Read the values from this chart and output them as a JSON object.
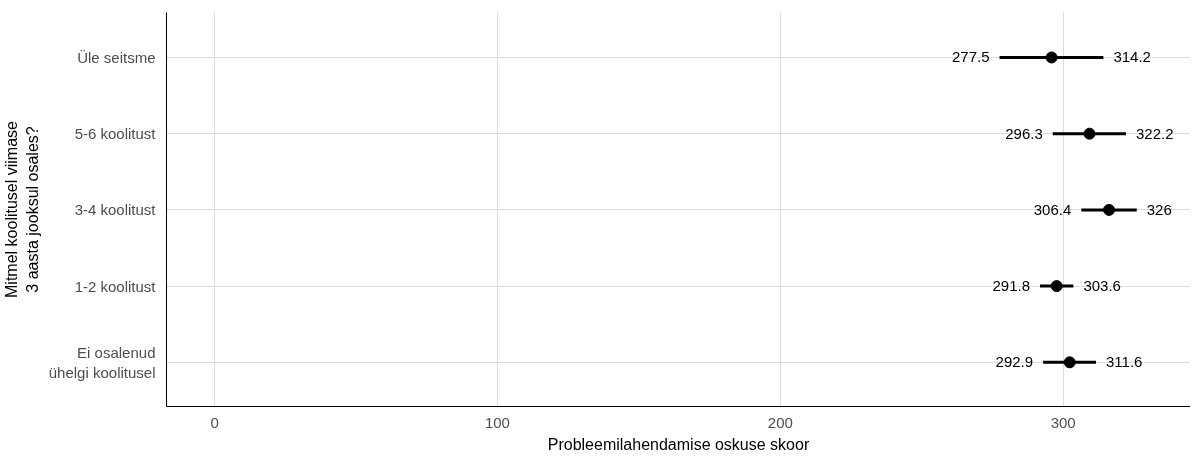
{
  "chart_data": {
    "type": "scatter",
    "orientation": "horizontal",
    "xlabel": "Probleemilahendamise oskuse skoor",
    "ylabel": "Mitmel koolitusel viimase\n3 aasta jooksul osales?",
    "categories": [
      "Üle seitsme",
      "5-6 koolitust",
      "3-4 koolitust",
      "1-2 koolitust",
      "Ei osalenud\nühelgi koolitusel"
    ],
    "values": [
      295.9,
      309.3,
      316.2,
      297.7,
      302.3
    ],
    "errors": [
      [
        277.5,
        314.2
      ],
      [
        296.3,
        322.2
      ],
      [
        306.4,
        326
      ],
      [
        291.8,
        303.6
      ],
      [
        292.9,
        311.6
      ]
    ],
    "color": "#000000",
    "marker": "circle",
    "grid": true,
    "xlim": [
      -17,
      345
    ],
    "xticks": [
      0,
      100,
      200,
      300
    ],
    "annotations": [
      {
        "text": "277.5",
        "x": 277.5,
        "y": "Üle seitsme"
      },
      {
        "text": "314.2",
        "x": 314.2,
        "y": "Üle seitsme"
      },
      {
        "text": "296.3",
        "x": 296.3,
        "y": "5-6 koolitust"
      },
      {
        "text": "322.2",
        "x": 322.2,
        "y": "5-6 koolitust"
      },
      {
        "text": "306.4",
        "x": 306.4,
        "y": "3-4 koolitust"
      },
      {
        "text": "326",
        "x": 326,
        "y": "3-4 koolitust"
      },
      {
        "text": "291.8",
        "x": 291.8,
        "y": "1-2 koolitust"
      },
      {
        "text": "303.6",
        "x": 303.6,
        "y": "1-2 koolitust"
      },
      {
        "text": "292.9",
        "x": 292.9,
        "y": "Ei osalenud\nühelgi koolitusel"
      },
      {
        "text": "311.6",
        "x": 311.6,
        "y": "Ei osalenud\nühelgi koolitusel"
      }
    ]
  }
}
